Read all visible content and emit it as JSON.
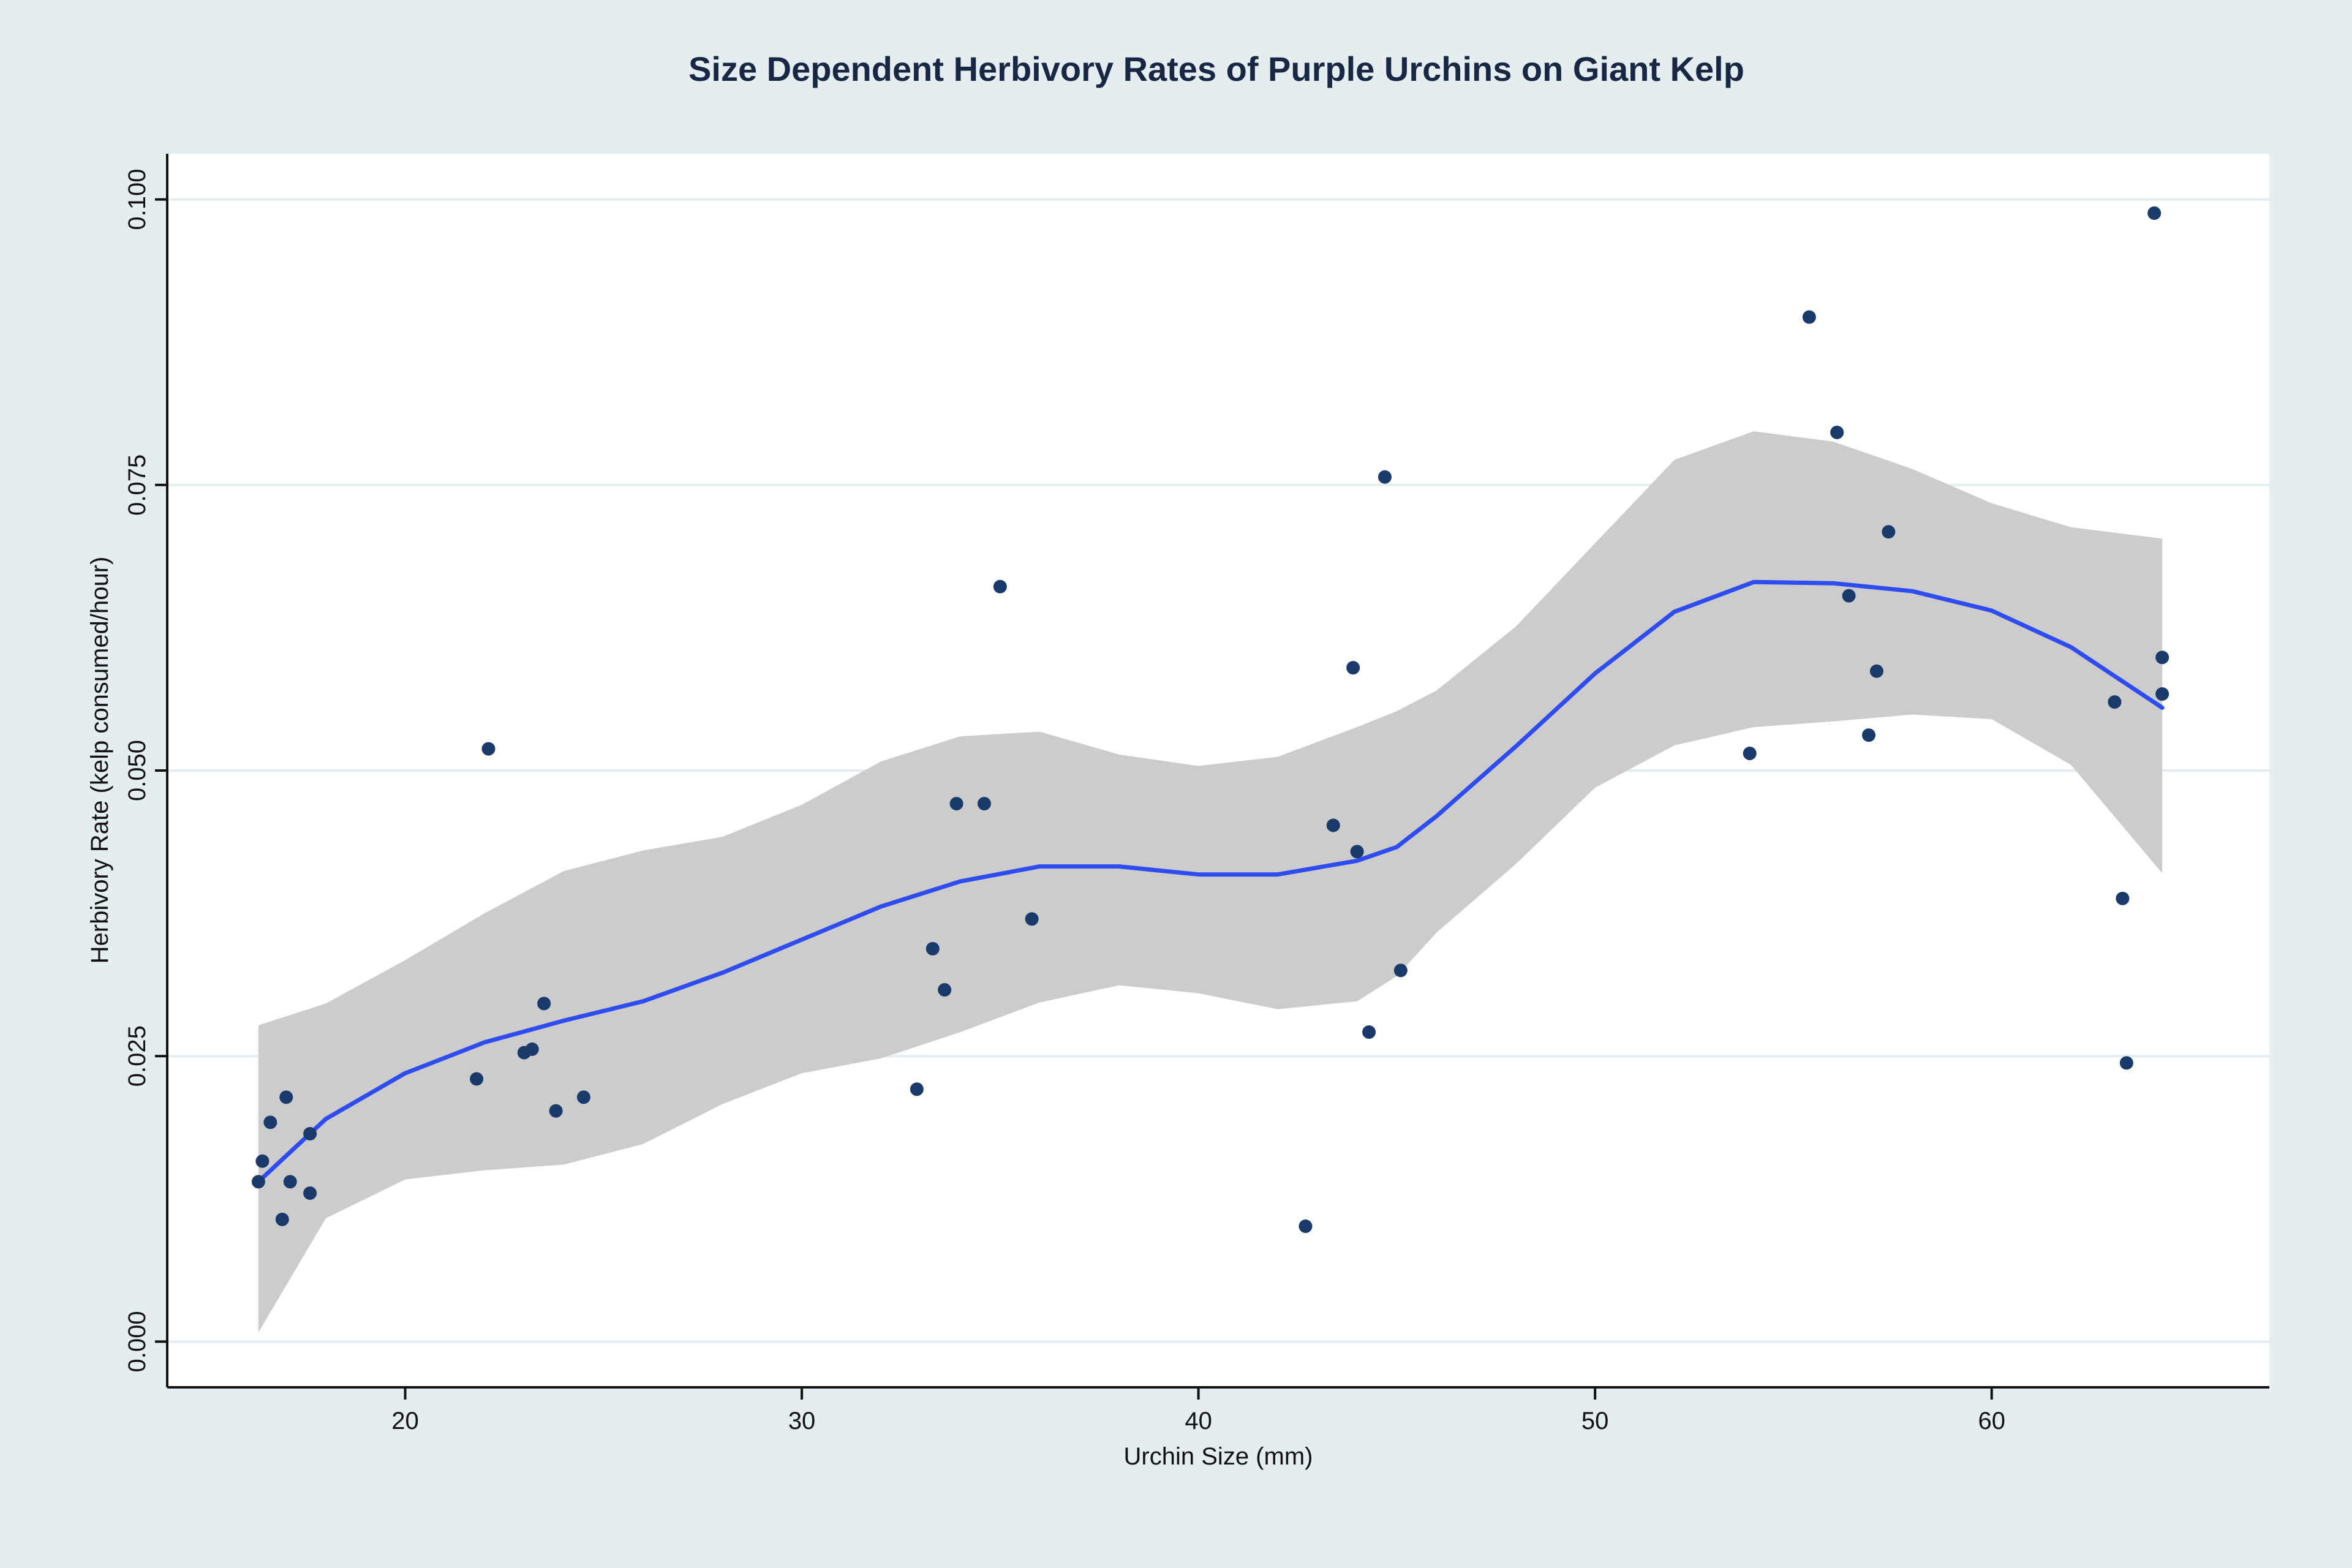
{
  "colors": {
    "page_background": "#e4eef0",
    "plot_background": "#ffffff",
    "gridline": "#e4eef0",
    "points": "#1a3a6b",
    "smooth_line": "#2e4cf0",
    "confidence_band": "#cccccc",
    "title": "#1a2744"
  },
  "chart_data": {
    "type": "scatter",
    "title": "Size Dependent Herbivory Rates of Purple Urchins on Giant Kelp",
    "xlabel": "Urchin Size (mm)",
    "ylabel": "Herbivory Rate (kelp consumed/hour)",
    "xlim": [
      14,
      67
    ],
    "ylim": [
      -0.004,
      0.104
    ],
    "x_ticks": [
      20,
      30,
      40,
      50,
      60
    ],
    "x_tick_labels": [
      "20",
      "30",
      "40",
      "50",
      "60"
    ],
    "y_ticks": [
      0.0,
      0.025,
      0.05,
      0.075,
      0.1
    ],
    "y_tick_labels": [
      "0.000",
      "0.025",
      "0.050",
      "0.075",
      "0.100"
    ],
    "grid": "horizontal",
    "points": [
      {
        "x": 16.3,
        "y": 0.014
      },
      {
        "x": 16.4,
        "y": 0.0158
      },
      {
        "x": 16.6,
        "y": 0.0192
      },
      {
        "x": 16.9,
        "y": 0.0107
      },
      {
        "x": 17.0,
        "y": 0.0214
      },
      {
        "x": 17.1,
        "y": 0.014
      },
      {
        "x": 17.6,
        "y": 0.0182
      },
      {
        "x": 17.6,
        "y": 0.013
      },
      {
        "x": 21.8,
        "y": 0.023
      },
      {
        "x": 22.1,
        "y": 0.0519
      },
      {
        "x": 23.0,
        "y": 0.0253
      },
      {
        "x": 23.2,
        "y": 0.0256
      },
      {
        "x": 23.5,
        "y": 0.0296
      },
      {
        "x": 23.8,
        "y": 0.0202
      },
      {
        "x": 24.5,
        "y": 0.0214
      },
      {
        "x": 32.9,
        "y": 0.0221
      },
      {
        "x": 33.3,
        "y": 0.0344
      },
      {
        "x": 33.6,
        "y": 0.0308
      },
      {
        "x": 33.9,
        "y": 0.0471
      },
      {
        "x": 34.6,
        "y": 0.0471
      },
      {
        "x": 35.0,
        "y": 0.0661
      },
      {
        "x": 35.8,
        "y": 0.037
      },
      {
        "x": 42.7,
        "y": 0.0101
      },
      {
        "x": 43.4,
        "y": 0.0452
      },
      {
        "x": 43.9,
        "y": 0.059
      },
      {
        "x": 44.0,
        "y": 0.0429
      },
      {
        "x": 44.3,
        "y": 0.0271
      },
      {
        "x": 44.7,
        "y": 0.0757
      },
      {
        "x": 45.1,
        "y": 0.0325
      },
      {
        "x": 53.9,
        "y": 0.0515
      },
      {
        "x": 55.4,
        "y": 0.0897
      },
      {
        "x": 56.1,
        "y": 0.0796
      },
      {
        "x": 56.4,
        "y": 0.0653
      },
      {
        "x": 56.9,
        "y": 0.0531
      },
      {
        "x": 57.1,
        "y": 0.0587
      },
      {
        "x": 57.4,
        "y": 0.0709
      },
      {
        "x": 63.1,
        "y": 0.056
      },
      {
        "x": 63.3,
        "y": 0.0388
      },
      {
        "x": 63.4,
        "y": 0.0244
      },
      {
        "x": 64.1,
        "y": 0.0988
      },
      {
        "x": 64.3,
        "y": 0.0599
      },
      {
        "x": 64.3,
        "y": 0.0567
      }
    ],
    "smooth": {
      "x": [
        16.3,
        18,
        20,
        22,
        24,
        26,
        28,
        30,
        32,
        34,
        36,
        38,
        40,
        42,
        44,
        45,
        46,
        48,
        50,
        52,
        54,
        56,
        58,
        60,
        62,
        64.3
      ],
      "y": [
        0.014,
        0.0195,
        0.0235,
        0.0262,
        0.0281,
        0.0298,
        0.0323,
        0.0352,
        0.0381,
        0.0403,
        0.0416,
        0.0416,
        0.0409,
        0.0409,
        0.0421,
        0.0433,
        0.046,
        0.0521,
        0.0585,
        0.0639,
        0.0665,
        0.0664,
        0.0657,
        0.064,
        0.0608,
        0.0555
      ],
      "lower": [
        0.0008,
        0.0108,
        0.0142,
        0.015,
        0.0155,
        0.0173,
        0.0208,
        0.0235,
        0.0248,
        0.0271,
        0.0297,
        0.0312,
        0.0305,
        0.0291,
        0.0298,
        0.032,
        0.0358,
        0.0418,
        0.0485,
        0.0522,
        0.0538,
        0.0543,
        0.0549,
        0.0545,
        0.0505,
        0.041
      ],
      "upper": [
        0.0277,
        0.0296,
        0.0334,
        0.0375,
        0.0412,
        0.043,
        0.0442,
        0.047,
        0.0508,
        0.053,
        0.0534,
        0.0514,
        0.0504,
        0.0512,
        0.0538,
        0.0552,
        0.057,
        0.0626,
        0.0699,
        0.0772,
        0.0797,
        0.0788,
        0.0764,
        0.0734,
        0.0713,
        0.0703
      ]
    }
  }
}
